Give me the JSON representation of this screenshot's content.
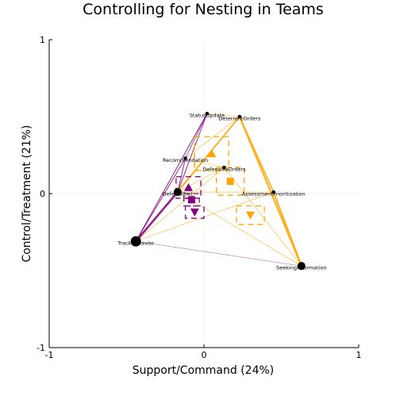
{
  "chart_data": {
    "type": "scatter",
    "title": "Controlling for Nesting in Teams",
    "xlabel": "Support/Command (24%)",
    "ylabel": "Control/Treatment (21%)",
    "xlim": [
      -1,
      1
    ],
    "ylim": [
      -1,
      1
    ],
    "xticks": [
      "-1",
      "0",
      "1"
    ],
    "yticks": [
      "-1",
      "0",
      "1"
    ],
    "grid": true,
    "colors": {
      "orange": "#ffa500",
      "purple": "#800080",
      "node": "#000000"
    },
    "nodes": [
      {
        "label": "StatusUpdate",
        "x": 0.02,
        "y": 0.52,
        "size": "small"
      },
      {
        "label": "DeterrentOrders",
        "x": 0.23,
        "y": 0.5,
        "size": "small"
      },
      {
        "label": "Recommendation",
        "x": -0.12,
        "y": 0.23,
        "size": "small"
      },
      {
        "label": "DefensiveOrders",
        "x": 0.13,
        "y": 0.17,
        "size": "small"
      },
      {
        "label": "DeferralExit",
        "x": -0.17,
        "y": 0.01,
        "size": "medium"
      },
      {
        "label": "AssessmentPrioritization",
        "x": 0.45,
        "y": 0.01,
        "size": "small"
      },
      {
        "label": "TrackBehavior",
        "x": -0.44,
        "y": -0.31,
        "size": "large"
      },
      {
        "label": "SeekingInformation",
        "x": 0.63,
        "y": -0.47,
        "size": "medium"
      }
    ],
    "edges": [
      {
        "from": "StatusUpdate",
        "to": "DeterrentOrders",
        "color": "orange",
        "weight": 0.6
      },
      {
        "from": "StatusUpdate",
        "to": "Recommendation",
        "color": "purple",
        "weight": 0.8
      },
      {
        "from": "StatusUpdate",
        "to": "DeferralExit",
        "color": "purple",
        "weight": 1.0
      },
      {
        "from": "StatusUpdate",
        "to": "TrackBehavior",
        "color": "purple",
        "weight": 1.0
      },
      {
        "from": "DeterrentOrders",
        "to": "TrackBehavior",
        "color": "orange",
        "weight": 1.2
      },
      {
        "from": "DeterrentOrders",
        "to": "DeferralExit",
        "color": "orange",
        "weight": 1.6
      },
      {
        "from": "DeterrentOrders",
        "to": "SeekingInformation",
        "color": "orange",
        "weight": 2.2
      },
      {
        "from": "DeterrentOrders",
        "to": "AssessmentPrioritization",
        "color": "orange",
        "weight": 1.8
      },
      {
        "from": "DeterrentOrders",
        "to": "Recommendation",
        "color": "orange",
        "weight": 0.6
      },
      {
        "from": "Recommendation",
        "to": "DeferralExit",
        "color": "purple",
        "weight": 1.0
      },
      {
        "from": "Recommendation",
        "to": "TrackBehavior",
        "color": "purple",
        "weight": 1.0
      },
      {
        "from": "Recommendation",
        "to": "DefensiveOrders",
        "color": "orange",
        "weight": 0.5
      },
      {
        "from": "DefensiveOrders",
        "to": "TrackBehavior",
        "color": "orange",
        "weight": 0.6
      },
      {
        "from": "DefensiveOrders",
        "to": "DeferralExit",
        "color": "orange",
        "weight": 0.6
      },
      {
        "from": "DefensiveOrders",
        "to": "SeekingInformation",
        "color": "orange",
        "weight": 0.6
      },
      {
        "from": "DeferralExit",
        "to": "TrackBehavior",
        "color": "purple",
        "weight": 2.6
      },
      {
        "from": "DeferralExit",
        "to": "AssessmentPrioritization",
        "color": "orange",
        "weight": 0.6
      },
      {
        "from": "DeferralExit",
        "to": "SeekingInformation",
        "color": "orange",
        "weight": 0.6
      },
      {
        "from": "TrackBehavior",
        "to": "AssessmentPrioritization",
        "color": "orange",
        "weight": 0.6
      },
      {
        "from": "TrackBehavior",
        "to": "SeekingInformation",
        "color": "purple",
        "weight": 0.4
      },
      {
        "from": "AssessmentPrioritization",
        "to": "SeekingInformation",
        "color": "orange",
        "weight": 2.2
      }
    ],
    "groups": [
      {
        "color": "orange",
        "marker": "triangle-up",
        "x": 0.05,
        "y": 0.26,
        "hw": 0.11,
        "hh": 0.11
      },
      {
        "color": "orange",
        "marker": "square",
        "x": 0.17,
        "y": 0.08,
        "hw": 0.09,
        "hh": 0.09
      },
      {
        "color": "orange",
        "marker": "triangle-down",
        "x": 0.3,
        "y": -0.14,
        "hw": 0.09,
        "hh": 0.06
      },
      {
        "color": "purple",
        "marker": "triangle-up",
        "x": -0.1,
        "y": 0.04,
        "hw": 0.08,
        "hh": 0.07
      },
      {
        "color": "purple",
        "marker": "square",
        "x": -0.08,
        "y": -0.04,
        "hw": 0.05,
        "hh": 0.04
      },
      {
        "color": "purple",
        "marker": "triangle-down",
        "x": -0.06,
        "y": -0.12,
        "hw": 0.06,
        "hh": 0.04
      }
    ]
  }
}
